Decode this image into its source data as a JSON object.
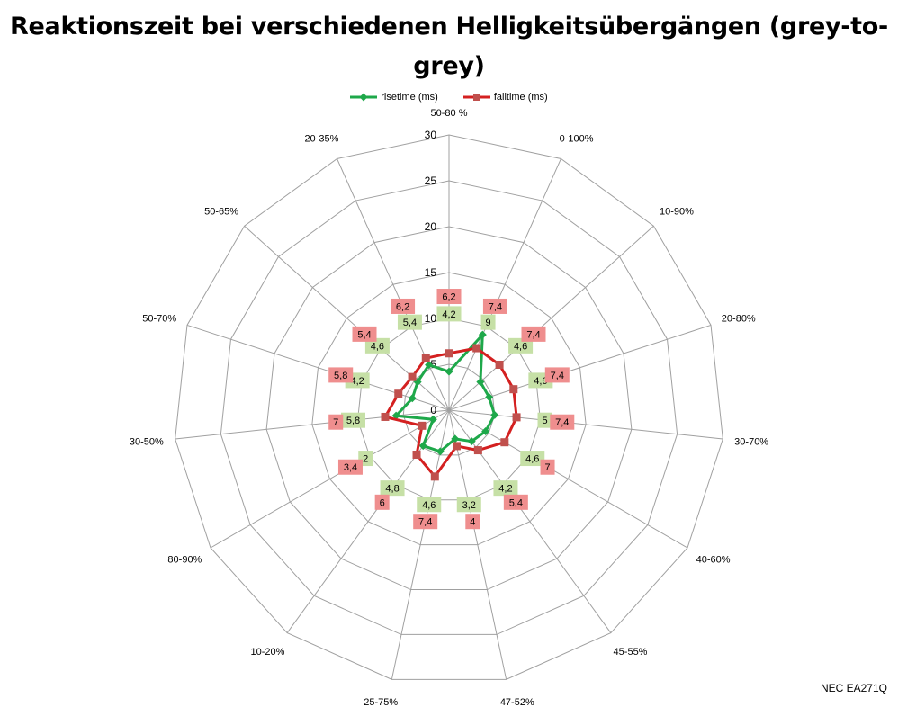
{
  "title": "Reaktionszeit bei verschiedenen Helligkeitsübergängen (grey-to-grey)",
  "footer": "NEC EA271Q",
  "colors": {
    "rise": "#1ea84a",
    "fall": "#d42020",
    "rise_label_bg": "#c6e0a6",
    "fall_label_bg": "#ef8e8e",
    "grid": "#a0a0a0"
  },
  "chart_data": {
    "type": "radar",
    "title": "Reaktionszeit bei verschiedenen Helligkeitsübergängen (grey-to-grey)",
    "categories": [
      "50-80 %",
      "0-100%",
      "10-90%",
      "20-80%",
      "30-70%",
      "40-60%",
      "45-55%",
      "47-52%",
      "25-75%",
      "10-20%",
      "80-90%",
      "30-50%",
      "50-70%",
      "50-65%",
      "20-35%"
    ],
    "rlim": [
      0,
      30
    ],
    "ticks": [
      0,
      5,
      10,
      15,
      20,
      25,
      30
    ],
    "grid": true,
    "legend_position": "top",
    "series": [
      {
        "name": "risetime (ms)",
        "values": [
          4.2,
          9,
          4.6,
          4.6,
          5,
          4.6,
          4.2,
          3.2,
          4.6,
          4.8,
          2,
          5.8,
          4.2,
          4.6,
          5.4
        ],
        "labels": [
          "4,2",
          "9",
          "4,6",
          "4,6",
          "5",
          "4,6",
          "4,2",
          "3,2",
          "4,6",
          "4,8",
          "2",
          "5,8",
          "4,2",
          "4,6",
          "5,4"
        ]
      },
      {
        "name": "falltime (ms)",
        "values": [
          6.2,
          7.4,
          7.4,
          7.4,
          7.4,
          7,
          5.4,
          4,
          7.4,
          6,
          3.4,
          7,
          5.8,
          5.4,
          6.2
        ],
        "labels": [
          "6,2",
          "7,4",
          "7,4",
          "7,4",
          "7,4",
          "7",
          "5,4",
          "4",
          "7,4",
          "6",
          "3,4",
          "7",
          "5,8",
          "5,4",
          "6,2"
        ]
      }
    ]
  }
}
